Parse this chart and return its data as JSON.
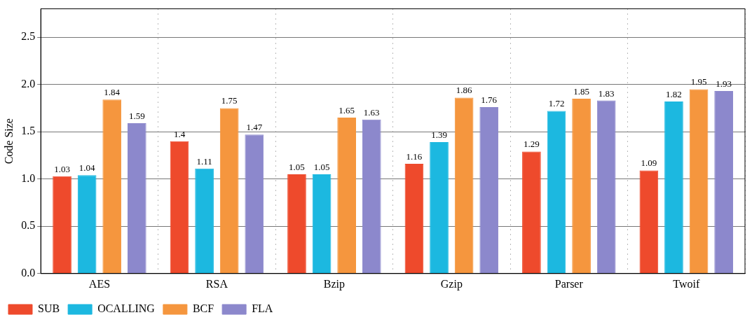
{
  "chart_data": {
    "type": "bar",
    "ylabel": "Code Size",
    "categories": [
      "AES",
      "RSA",
      "Bzip",
      "Gzip",
      "Parser",
      "Twoif"
    ],
    "series": [
      {
        "name": "SUB",
        "color": "#ee4a2c",
        "values": [
          1.03,
          1.4,
          1.05,
          1.16,
          1.29,
          1.09
        ]
      },
      {
        "name": "OCALLING",
        "color": "#1cb8e0",
        "values": [
          1.04,
          1.11,
          1.05,
          1.39,
          1.72,
          1.82
        ]
      },
      {
        "name": "BCF",
        "color": "#f5963e",
        "values": [
          1.84,
          1.75,
          1.65,
          1.86,
          1.85,
          1.95
        ]
      },
      {
        "name": "FLA",
        "color": "#8c88cc",
        "values": [
          1.59,
          1.47,
          1.63,
          1.76,
          1.83,
          1.93
        ]
      }
    ],
    "ylim": [
      0,
      2.8
    ],
    "yticks": [
      {
        "value": 0,
        "label": "0.0"
      },
      {
        "value": 0.5,
        "label": "0.5"
      },
      {
        "value": 1,
        "label": "1.0"
      },
      {
        "value": 1.5,
        "label": "1.5"
      },
      {
        "value": 2,
        "label": "2.0"
      },
      {
        "value": 2.5,
        "label": "2.5"
      }
    ],
    "grid": true,
    "legend": "bottom",
    "data_labels": true
  }
}
